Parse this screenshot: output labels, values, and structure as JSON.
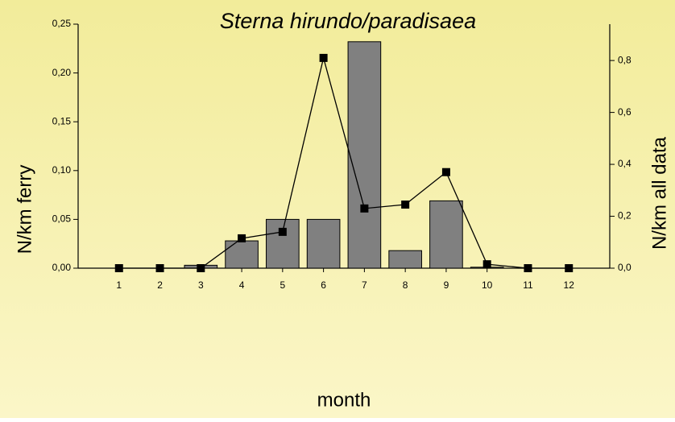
{
  "chart_data": {
    "type": "bar-line",
    "title": "Sterna hirundo/paradisaea",
    "x_label": "month",
    "y_label": "N/km ferry",
    "y2_label": "N/km all data",
    "xlim": [
      0,
      13
    ],
    "xticks": [
      1,
      2,
      3,
      4,
      5,
      6,
      7,
      8,
      9,
      10,
      11,
      12
    ],
    "ylim": [
      0,
      0.25
    ],
    "yticks": [
      {
        "value": 0,
        "label": "0,00"
      },
      {
        "value": 0.05,
        "label": "0,05"
      },
      {
        "value": 0.1,
        "label": "0,10"
      },
      {
        "value": 0.15,
        "label": "0,15"
      },
      {
        "value": 0.2,
        "label": "0,20"
      },
      {
        "value": 0.25,
        "label": "0,25"
      }
    ],
    "y2lim": [
      0,
      0.94
    ],
    "y2ticks": [
      {
        "value": 0,
        "label": "0,0"
      },
      {
        "value": 0.2,
        "label": "0,2"
      },
      {
        "value": 0.4,
        "label": "0,4"
      },
      {
        "value": 0.6,
        "label": "0,6"
      },
      {
        "value": 0.8,
        "label": "0,8"
      }
    ],
    "x": [
      1,
      2,
      3,
      4,
      5,
      6,
      7,
      8,
      9,
      10,
      11,
      12
    ],
    "series": [
      {
        "name": "N/km ferry",
        "kind": "bar",
        "color": "#808080",
        "values": [
          0,
          0,
          0.003,
          0.028,
          0.05,
          0.05,
          0.232,
          0.018,
          0.069,
          0.001,
          0,
          0
        ]
      },
      {
        "name": "N/km all data",
        "kind": "line",
        "axis": "y2",
        "color": "#000000",
        "values": [
          0,
          0,
          0,
          0.115,
          0.14,
          0.81,
          0.23,
          0.245,
          0.37,
          0.015,
          0,
          0
        ]
      }
    ]
  }
}
